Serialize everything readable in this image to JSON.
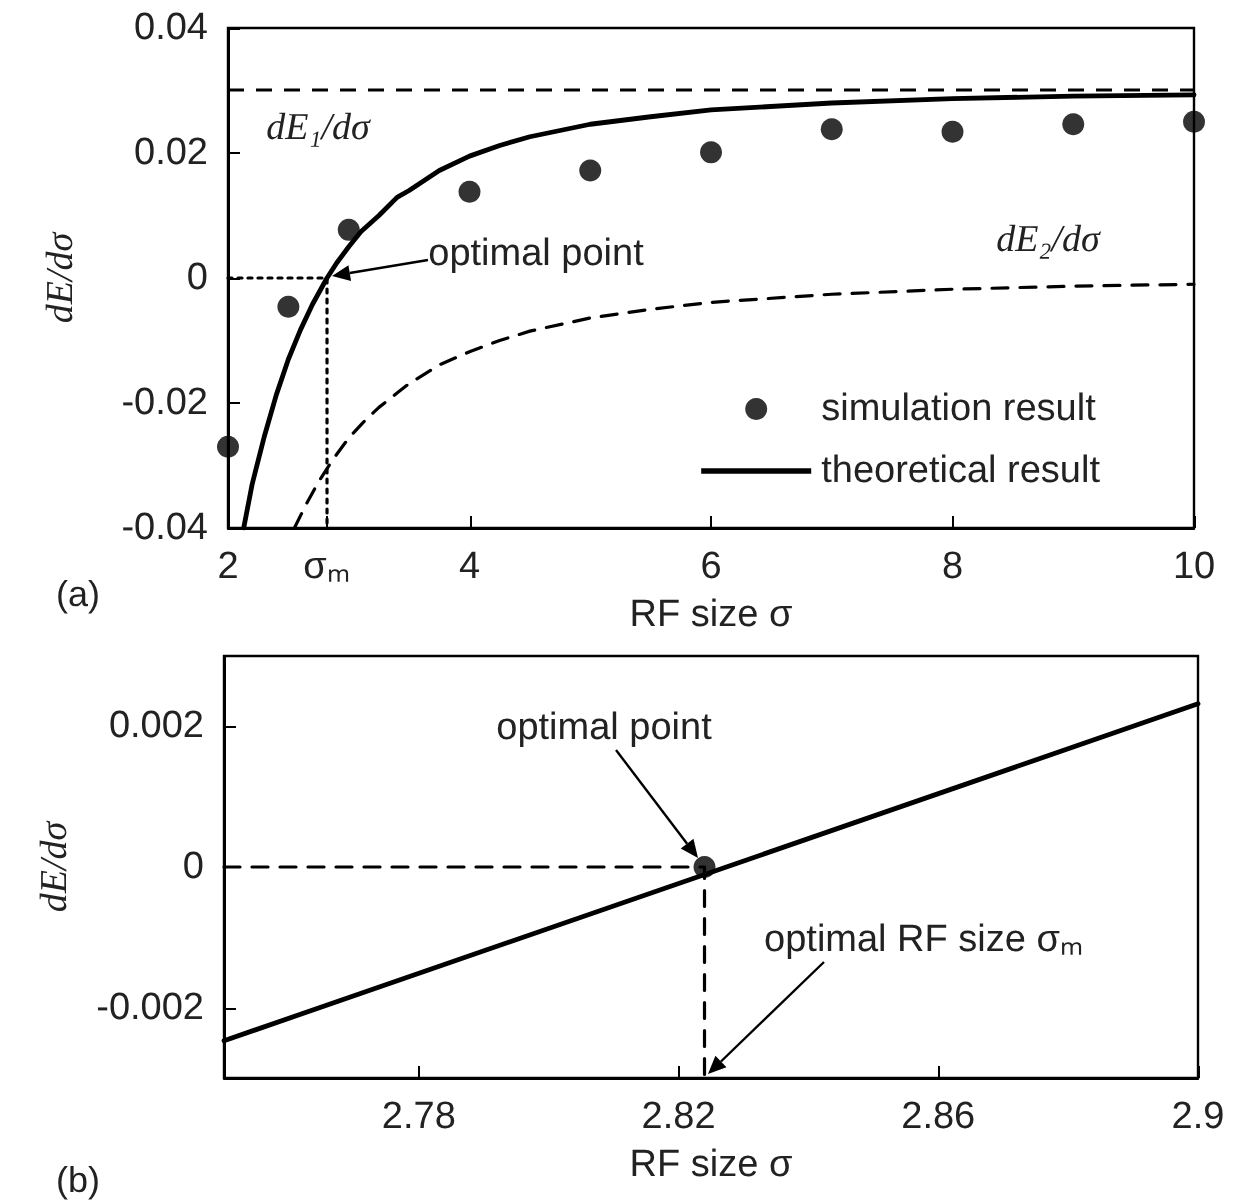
{
  "chart_data": [
    {
      "type": "line",
      "xlabel": "RF size σ",
      "ylabel": "dE/dσ",
      "xlim": [
        2,
        10
      ],
      "ylim": [
        -0.04,
        0.04
      ],
      "xticks": [
        2,
        {
          "value": 2.82,
          "label": "σₘ"
        },
        4,
        6,
        8,
        10
      ],
      "yticks": [
        -0.04,
        -0.02,
        0,
        0.02,
        0.04
      ],
      "legend": "bottom right",
      "series": [
        {
          "name": "simulation result",
          "type": "scatter",
          "marker": "circle",
          "color": "#000000",
          "x": [
            2,
            2.5,
            3,
            4,
            5,
            6,
            7,
            8,
            9,
            10
          ],
          "values": [
            -0.027,
            -0.0046,
            0.0077,
            0.0138,
            0.0172,
            0.0201,
            0.0238,
            0.0234,
            0.0246,
            0.025
          ]
        },
        {
          "name": "theoretical result",
          "type": "line",
          "marker": "none",
          "line_style": "solid",
          "color": "#000000",
          "x": [
            2.13,
            2.2,
            2.3,
            2.4,
            2.5,
            2.6,
            2.7,
            2.82,
            2.9,
            3,
            3.1,
            3.25,
            3.4,
            3.5,
            3.75,
            4,
            4.25,
            4.5,
            5,
            5.5,
            6,
            7,
            8,
            9,
            10
          ],
          "values": [
            -0.04,
            -0.033,
            -0.0254,
            -0.0187,
            -0.013,
            -0.0083,
            -0.0042,
            0,
            0.0024,
            0.005,
            0.0074,
            0.01,
            0.0129,
            0.014,
            0.0172,
            0.0195,
            0.0212,
            0.0226,
            0.0246,
            0.0258,
            0.0269,
            0.028,
            0.0287,
            0.0291,
            0.0293
          ]
        },
        {
          "type": "line",
          "marker": "none",
          "line_style": "dashed",
          "color": "#000000",
          "x": [
            2.55,
            2.65,
            2.75,
            2.87,
            3,
            3.12,
            3.25,
            3.4,
            3.5,
            3.75,
            4,
            4.25,
            4.5,
            5,
            5.5,
            6,
            7,
            8,
            9,
            10
          ],
          "values": [
            -0.04,
            -0.0361,
            -0.0326,
            -0.029,
            -0.0256,
            -0.0231,
            -0.0207,
            -0.0184,
            -0.0169,
            -0.0139,
            -0.0118,
            -0.01,
            -0.0085,
            -0.0064,
            -0.005,
            -0.0039,
            -0.0026,
            -0.0018,
            -0.0013,
            -0.001
          ]
        },
        {
          "type": "line",
          "marker": "none",
          "line_style": "dotted",
          "color": "#000000",
          "x": [
            2,
            2.82,
            2.82
          ],
          "values": [
            0,
            0,
            -0.04
          ]
        }
      ],
      "ref_lines": [
        {
          "axis": "y",
          "value": 0.03,
          "line_style": "dashed",
          "color": "#000000"
        }
      ],
      "annotations": [
        "dE₁/dσ",
        "dE₂/dσ",
        "optimal point",
        "(a)"
      ]
    },
    {
      "type": "line",
      "xlabel": "RF size σ",
      "ylabel": "dE/dσ",
      "xlim": [
        2.75,
        2.9
      ],
      "ylim": [
        -0.003,
        0.003
      ],
      "xticks": [
        2.78,
        2.82,
        2.86,
        2.9
      ],
      "yticks": [
        -0.002,
        0,
        0.002
      ],
      "series": [
        {
          "type": "line",
          "marker": "none",
          "line_style": "solid",
          "color": "#000000",
          "x": [
            2.75,
            2.9
          ],
          "values": [
            -0.00247,
            0.00232
          ]
        },
        {
          "type": "line",
          "marker": "none",
          "line_style": "dashed",
          "color": "#000000",
          "x": [
            2.75,
            2.824,
            2.824
          ],
          "values": [
            0,
            0,
            -0.003
          ]
        },
        {
          "type": "scatter",
          "marker": "circle",
          "color": "#000000",
          "x": [
            2.824
          ],
          "values": [
            0
          ]
        }
      ],
      "annotations": [
        "optimal point",
        "optimal RF size σₘ",
        "(b)"
      ]
    }
  ]
}
